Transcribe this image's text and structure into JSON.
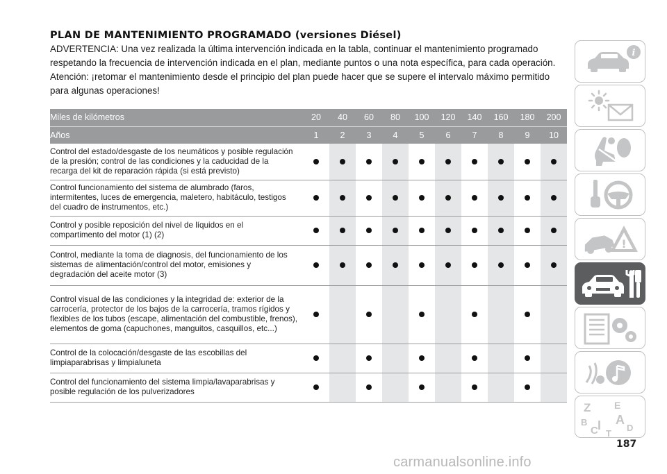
{
  "heading": "PLAN DE MANTENIMIENTO PROGRAMADO (versiones Diésel)",
  "warning_text": "ADVERTENCIA: Una vez realizada la última intervención indicada en la tabla, continuar el mantenimiento programado respetando la frecuencia de intervención indicada en el plan, mediante puntos o una nota específica, para cada operación.",
  "attention_text": "Atención: ¡retomar el mantenimiento desde el principio del plan puede hacer que se supere el intervalo máximo permitido para algunas operaciones!",
  "table": {
    "header_km_label": "Miles de kilómetros",
    "header_years_label": "Años",
    "km": [
      "20",
      "40",
      "60",
      "80",
      "100",
      "120",
      "140",
      "160",
      "180",
      "200"
    ],
    "years": [
      "1",
      "2",
      "3",
      "4",
      "5",
      "6",
      "7",
      "8",
      "9",
      "10"
    ],
    "rows": [
      {
        "text": "Control del estado/desgaste de los neumáticos y posible regulación de la presión; control de las condiciones y la caducidad de la recarga del kit de reparación rápida (si está previsto)",
        "marks": [
          true,
          true,
          true,
          true,
          true,
          true,
          true,
          true,
          true,
          true
        ]
      },
      {
        "text": "Control funcionamiento del sistema de alumbrado (faros, intermitentes, luces de emergencia, maletero, habitáculo, testigos del cuadro de instrumentos, etc.)",
        "marks": [
          true,
          true,
          true,
          true,
          true,
          true,
          true,
          true,
          true,
          true
        ]
      },
      {
        "text": "Control y posible reposición del nivel de líquidos en el compartimento del motor (1) (2)",
        "marks": [
          true,
          true,
          true,
          true,
          true,
          true,
          true,
          true,
          true,
          true
        ]
      },
      {
        "text": "Control, mediante la toma de diagnosis, del funcionamiento de los sistemas de alimentación/control del motor, emisiones y degradación del aceite motor (3)",
        "marks": [
          true,
          true,
          true,
          true,
          true,
          true,
          true,
          true,
          true,
          true
        ]
      },
      {
        "text": "Control visual de las condiciones y la integridad de: exterior de la carrocería, protector de los bajos de la carrocería, tramos rígidos y flexibles de los tubos (escape, alimentación del combustible, frenos), elementos de goma (capuchones, manguitos, casquillos, etc...)",
        "marks": [
          true,
          false,
          true,
          false,
          true,
          false,
          true,
          false,
          true,
          false
        ]
      },
      {
        "text": "Control de la colocación/desgaste de las escobillas del limpiaparabrisas y limpialuneta",
        "marks": [
          true,
          false,
          true,
          false,
          true,
          false,
          true,
          false,
          true,
          false
        ]
      },
      {
        "text": "Control del funcionamiento del sistema limpia/lavaparabrisas y posible regulación de los pulverizadores",
        "marks": [
          true,
          false,
          true,
          false,
          true,
          false,
          true,
          false,
          true,
          false
        ]
      }
    ]
  },
  "side_tabs": [
    {
      "icon": "car-info-icon",
      "active": false
    },
    {
      "icon": "warning-lights-icon",
      "active": false
    },
    {
      "icon": "airbag-seat-icon",
      "active": false
    },
    {
      "icon": "steering-wheel-key-icon",
      "active": false
    },
    {
      "icon": "breakdown-warning-icon",
      "active": false
    },
    {
      "icon": "car-service-icon",
      "active": true
    },
    {
      "icon": "technical-specs-icon",
      "active": false
    },
    {
      "icon": "multimedia-icon",
      "active": false
    },
    {
      "icon": "index-letters-icon",
      "active": false
    }
  ],
  "index_letters": [
    "Z",
    "E",
    "B",
    "A",
    "C",
    "D",
    "T"
  ],
  "page_number": "187",
  "watermark": "carmanualsonline.info",
  "colors": {
    "header_bg": "#9a9b9c",
    "shaded_column": "#e5e6e7",
    "active_tab": "#5c5d5f",
    "tab_border": "#bfc0c1"
  }
}
